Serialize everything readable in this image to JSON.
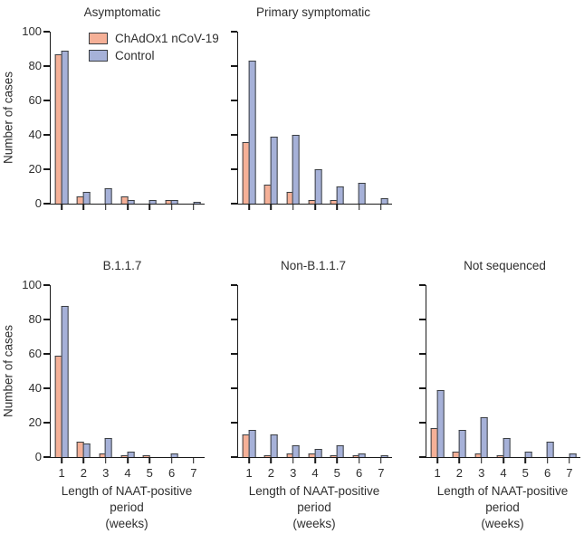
{
  "figure": {
    "ylabel": "Number of cases",
    "xlabel_line1": "Length of NAAT-positive period",
    "xlabel_line2": "(weeks)",
    "yticks": [
      0,
      20,
      40,
      60,
      80,
      100
    ],
    "colors": {
      "vaccine": "#F5B097",
      "control": "#A6B1D8",
      "outline": "#3A3E42"
    },
    "legend": [
      {
        "name": "ChAdOx1 nCoV-19",
        "swatch": "vaccine-swatch"
      },
      {
        "name": "Control",
        "swatch": "control-swatch"
      }
    ]
  },
  "chart_data": [
    {
      "type": "bar",
      "title": "Asymptomatic",
      "categories": [
        1,
        2,
        3,
        4,
        5,
        6,
        7
      ],
      "series": [
        {
          "name": "ChAdOx1 nCoV-19",
          "values": [
            87,
            4,
            0,
            4,
            0,
            2,
            0
          ]
        },
        {
          "name": "Control",
          "values": [
            89,
            7,
            9,
            2,
            2,
            2,
            1
          ]
        }
      ],
      "ylabel": "Number of cases",
      "ylim": [
        0,
        100
      ],
      "legend_position": "top-left-inside",
      "x_tick_labels_shown": false
    },
    {
      "type": "bar",
      "title": "Primary symptomatic",
      "categories": [
        1,
        2,
        3,
        4,
        5,
        6,
        7
      ],
      "series": [
        {
          "name": "ChAdOx1 nCoV-19",
          "values": [
            36,
            11,
            7,
            2,
            2,
            0,
            0
          ]
        },
        {
          "name": "Control",
          "values": [
            83,
            39,
            40,
            20,
            10,
            12,
            3
          ]
        }
      ],
      "ylim": [
        0,
        100
      ],
      "x_tick_labels_shown": false
    },
    {
      "type": "bar",
      "title": "B.1.1.7",
      "categories": [
        1,
        2,
        3,
        4,
        5,
        6,
        7
      ],
      "series": [
        {
          "name": "ChAdOx1 nCoV-19",
          "values": [
            59,
            9,
            2,
            1,
            1,
            0,
            0
          ]
        },
        {
          "name": "Control",
          "values": [
            88,
            8,
            11,
            3,
            0,
            2,
            0
          ]
        }
      ],
      "ylabel": "Number of cases",
      "xlabel": "Length of NAAT-positive period (weeks)",
      "ylim": [
        0,
        100
      ],
      "x_tick_labels_shown": true
    },
    {
      "type": "bar",
      "title": "Non-B.1.1.7",
      "categories": [
        1,
        2,
        3,
        4,
        5,
        6,
        7
      ],
      "series": [
        {
          "name": "ChAdOx1 nCoV-19",
          "values": [
            13,
            1,
            2,
            2,
            1,
            1,
            0
          ]
        },
        {
          "name": "Control",
          "values": [
            16,
            13,
            7,
            5,
            7,
            2,
            1
          ]
        }
      ],
      "xlabel": "Length of NAAT-positive period (weeks)",
      "ylim": [
        0,
        100
      ],
      "x_tick_labels_shown": true
    },
    {
      "type": "bar",
      "title": "Not sequenced",
      "categories": [
        1,
        2,
        3,
        4,
        5,
        6,
        7
      ],
      "series": [
        {
          "name": "ChAdOx1 nCoV-19",
          "values": [
            17,
            3,
            2,
            1,
            0,
            0,
            0
          ]
        },
        {
          "name": "Control",
          "values": [
            39,
            16,
            23,
            11,
            3,
            9,
            2
          ]
        }
      ],
      "xlabel": "Length of NAAT-positive period (weeks)",
      "ylim": [
        0,
        100
      ],
      "x_tick_labels_shown": true
    }
  ]
}
